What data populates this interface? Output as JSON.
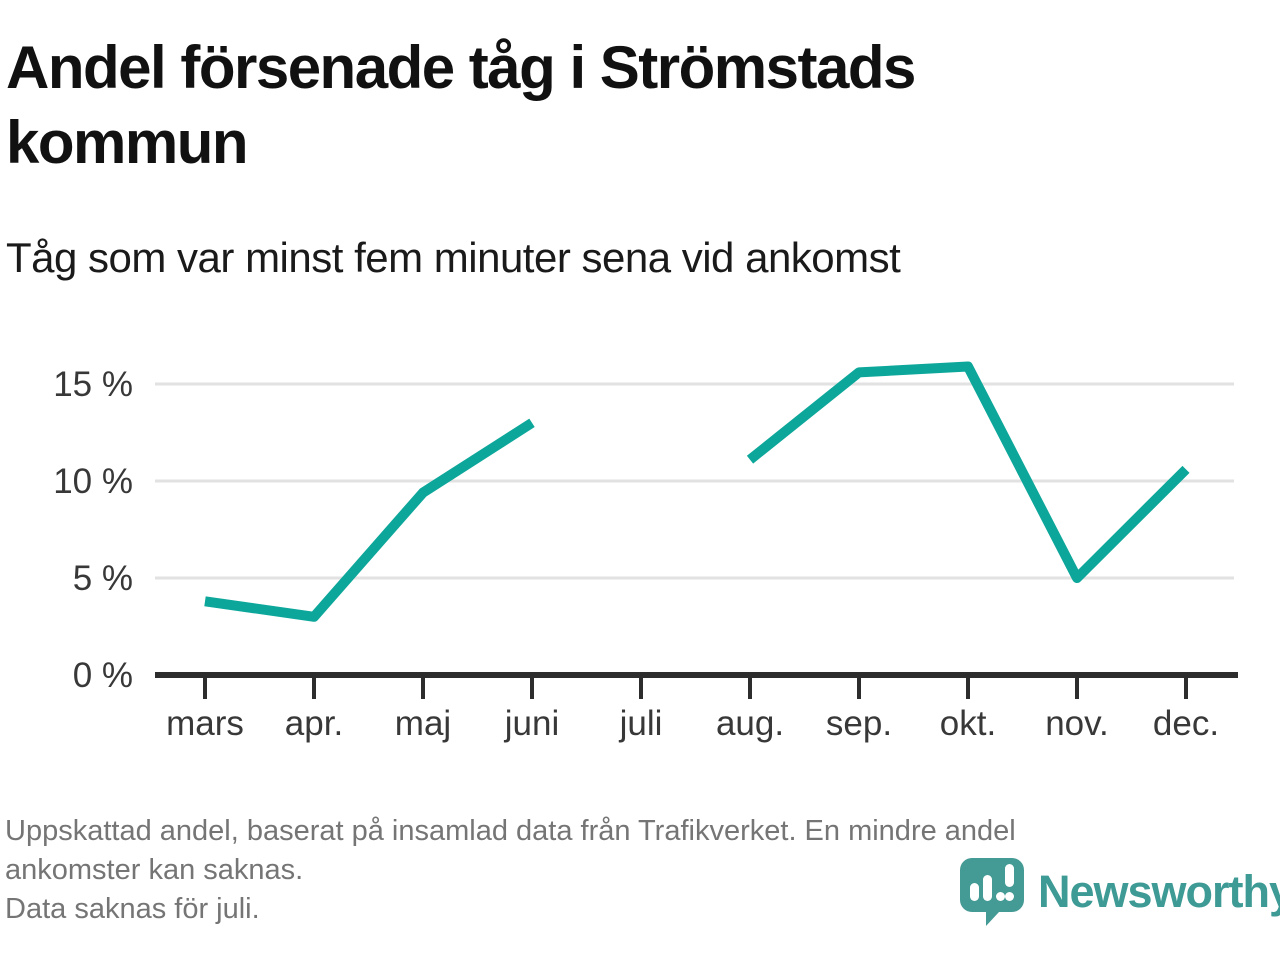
{
  "chart_data": {
    "type": "line",
    "title": "Andel försenade tåg i Strömstads kommun",
    "subtitle": "Tåg som var minst fem minuter sena vid ankomst",
    "categories": [
      "mars",
      "apr.",
      "maj",
      "juni",
      "juli",
      "aug.",
      "sep.",
      "okt.",
      "nov.",
      "dec."
    ],
    "series": [
      {
        "name": "Andel försenade tåg (%)",
        "values": [
          3.8,
          3.0,
          9.4,
          13.0,
          null,
          11.1,
          15.6,
          15.9,
          5.0,
          10.6
        ]
      }
    ],
    "yticks": [
      0,
      5,
      10,
      15
    ],
    "ytick_labels": [
      "0 %",
      "5 %",
      "10 %",
      "15 %"
    ],
    "ylim": [
      0,
      17.8
    ],
    "xlabel": "",
    "ylabel": "",
    "grid": "horizontal",
    "legend": "none",
    "gap_note": "Data saknas för juli.",
    "line_color": "#0ca79a",
    "grid_color": "#e2e2e2",
    "axis_color": "#2d2d2d",
    "tick_label_color": "#383838"
  },
  "footer": {
    "lines": [
      "Uppskattad andel, baserat på insamlad data från Trafikverket. En mindre andel",
      "ankomster kan saknas.",
      "Data saknas för juli."
    ]
  },
  "logo": {
    "wordmark": "Newsworthy",
    "brand_color": "#3d9a94"
  }
}
